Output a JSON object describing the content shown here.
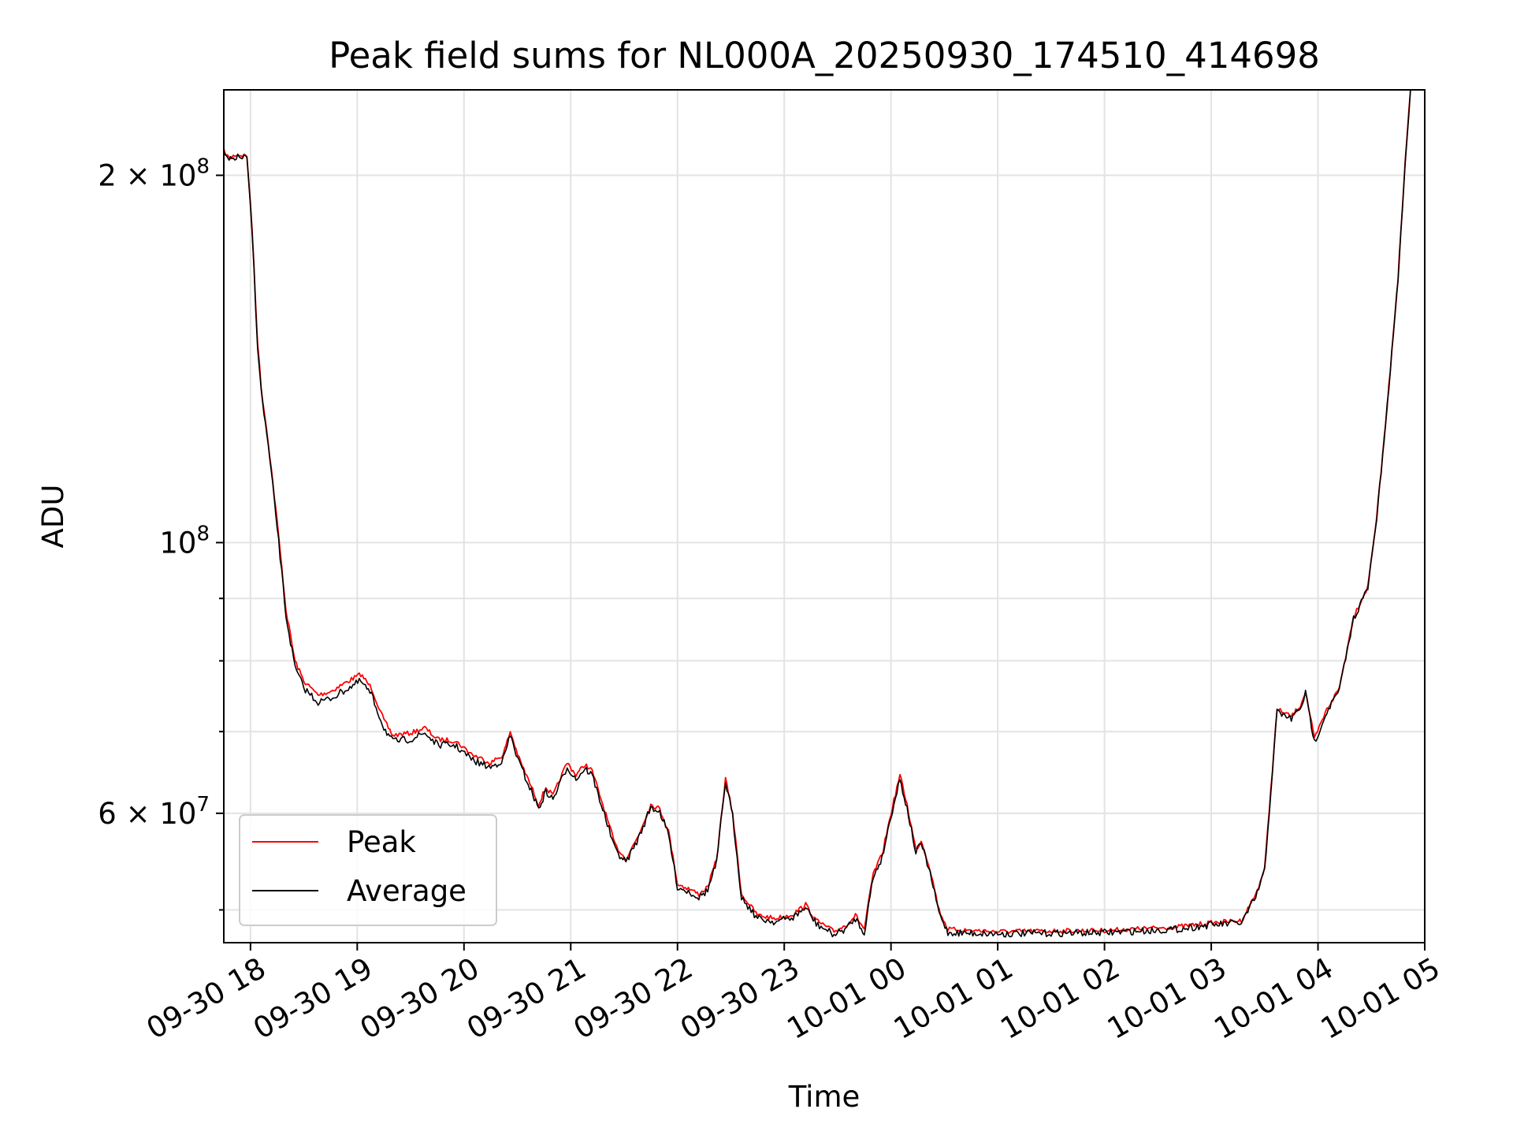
{
  "chart_data": {
    "type": "line",
    "title": "Peak field sums for NL000A_20250930_174510_414698",
    "xlabel": "Time",
    "ylabel": "ADU",
    "y_scale": "log",
    "ylim": [
      47000000,
      235000000
    ],
    "xlim": [
      "2025-09-30 17:45",
      "2025-10-01 05:00"
    ],
    "grid": true,
    "legend_position": "lower-left",
    "x_ticks": [
      {
        "label": "09-30 18",
        "value": "2025-09-30 18:00"
      },
      {
        "label": "09-30 19",
        "value": "2025-09-30 19:00"
      },
      {
        "label": "09-30 20",
        "value": "2025-09-30 20:00"
      },
      {
        "label": "09-30 21",
        "value": "2025-09-30 21:00"
      },
      {
        "label": "09-30 22",
        "value": "2025-09-30 22:00"
      },
      {
        "label": "09-30 23",
        "value": "2025-09-30 23:00"
      },
      {
        "label": "10-01 00",
        "value": "2025-10-01 00:00"
      },
      {
        "label": "10-01 01",
        "value": "2025-10-01 01:00"
      },
      {
        "label": "10-01 02",
        "value": "2025-10-01 02:00"
      },
      {
        "label": "10-01 03",
        "value": "2025-10-01 03:00"
      },
      {
        "label": "10-01 04",
        "value": "2025-10-01 04:00"
      },
      {
        "label": "10-01 05",
        "value": "2025-10-01 05:00"
      }
    ],
    "y_major_ticks": [
      {
        "value": 60000000,
        "mantissa": "6",
        "exponent": "7"
      },
      {
        "value": 100000000,
        "mantissa": "",
        "exponent": "8"
      },
      {
        "value": 200000000,
        "mantissa": "2",
        "exponent": "8"
      }
    ],
    "y_minor_ticks": [
      50000000,
      70000000,
      80000000,
      90000000
    ],
    "series": [
      {
        "name": "Peak",
        "color": "#ff0000",
        "points": [
          [
            "2025-09-30 17:45",
            209500000
          ],
          [
            "2025-09-30 17:48",
            206500000
          ],
          [
            "2025-09-30 17:52",
            208000000
          ],
          [
            "2025-09-30 17:58",
            207500000
          ],
          [
            "2025-09-30 18:01",
            180000000
          ],
          [
            "2025-09-30 18:04",
            146000000
          ],
          [
            "2025-09-30 18:06",
            134000000
          ],
          [
            "2025-09-30 18:10",
            121000000
          ],
          [
            "2025-09-30 18:15",
            104000000
          ],
          [
            "2025-09-30 18:20",
            88000000
          ],
          [
            "2025-09-30 18:25",
            80000000
          ],
          [
            "2025-09-30 18:30",
            77000000
          ],
          [
            "2025-09-30 18:38",
            75000000
          ],
          [
            "2025-09-30 18:45",
            75500000
          ],
          [
            "2025-09-30 18:55",
            77000000
          ],
          [
            "2025-09-30 19:02",
            78000000
          ],
          [
            "2025-09-30 19:08",
            76000000
          ],
          [
            "2025-09-30 19:15",
            71500000
          ],
          [
            "2025-09-30 19:20",
            69500000
          ],
          [
            "2025-09-30 19:30",
            69800000
          ],
          [
            "2025-09-30 19:38",
            70500000
          ],
          [
            "2025-09-30 19:45",
            69000000
          ],
          [
            "2025-09-30 19:55",
            68800000
          ],
          [
            "2025-09-30 20:05",
            67000000
          ],
          [
            "2025-09-30 20:15",
            66000000
          ],
          [
            "2025-09-30 20:22",
            67000000
          ],
          [
            "2025-09-30 20:26",
            70000000
          ],
          [
            "2025-09-30 20:31",
            66500000
          ],
          [
            "2025-09-30 20:37",
            63500000
          ],
          [
            "2025-09-30 20:42",
            61000000
          ],
          [
            "2025-09-30 20:46",
            63000000
          ],
          [
            "2025-09-30 20:50",
            62000000
          ],
          [
            "2025-09-30 20:55",
            64500000
          ],
          [
            "2025-09-30 20:58",
            66000000
          ],
          [
            "2025-09-30 21:03",
            64500000
          ],
          [
            "2025-09-30 21:08",
            65800000
          ],
          [
            "2025-09-30 21:12",
            65000000
          ],
          [
            "2025-09-30 21:18",
            61000000
          ],
          [
            "2025-09-30 21:25",
            56500000
          ],
          [
            "2025-09-30 21:31",
            55000000
          ],
          [
            "2025-09-30 21:38",
            57500000
          ],
          [
            "2025-09-30 21:45",
            61000000
          ],
          [
            "2025-09-30 21:50",
            60500000
          ],
          [
            "2025-09-30 21:55",
            58000000
          ],
          [
            "2025-09-30 22:00",
            52500000
          ],
          [
            "2025-09-30 22:07",
            52000000
          ],
          [
            "2025-09-30 22:12",
            51500000
          ],
          [
            "2025-09-30 22:17",
            52200000
          ],
          [
            "2025-09-30 22:22",
            55000000
          ],
          [
            "2025-09-30 22:27",
            64000000
          ],
          [
            "2025-09-30 22:31",
            60000000
          ],
          [
            "2025-09-30 22:36",
            51500000
          ],
          [
            "2025-09-30 22:45",
            49500000
          ],
          [
            "2025-09-30 22:55",
            49200000
          ],
          [
            "2025-09-30 23:05",
            49600000
          ],
          [
            "2025-09-30 23:12",
            50500000
          ],
          [
            "2025-09-30 23:18",
            49000000
          ],
          [
            "2025-09-30 23:28",
            48000000
          ],
          [
            "2025-09-30 23:35",
            48600000
          ],
          [
            "2025-09-30 23:40",
            49500000
          ],
          [
            "2025-09-30 23:45",
            48200000
          ],
          [
            "2025-09-30 23:50",
            53500000
          ],
          [
            "2025-09-30 23:55",
            55500000
          ],
          [
            "2025-10-01 00:00",
            60000000
          ],
          [
            "2025-10-01 00:05",
            64500000
          ],
          [
            "2025-10-01 00:09",
            61000000
          ],
          [
            "2025-10-01 00:14",
            56000000
          ],
          [
            "2025-10-01 00:17",
            57000000
          ],
          [
            "2025-10-01 00:22",
            54000000
          ],
          [
            "2025-10-01 00:27",
            50000000
          ],
          [
            "2025-10-01 00:32",
            48200000
          ],
          [
            "2025-10-01 01:00",
            48000000
          ],
          [
            "2025-10-01 02:00",
            48100000
          ],
          [
            "2025-10-01 02:40",
            48400000
          ],
          [
            "2025-10-01 03:00",
            48800000
          ],
          [
            "2025-10-01 03:17",
            49000000
          ],
          [
            "2025-10-01 03:25",
            51500000
          ],
          [
            "2025-10-01 03:30",
            54000000
          ],
          [
            "2025-10-01 03:37",
            73000000
          ],
          [
            "2025-10-01 03:45",
            72000000
          ],
          [
            "2025-10-01 03:50",
            73500000
          ],
          [
            "2025-10-01 03:53",
            75500000
          ],
          [
            "2025-10-01 03:58",
            69000000
          ],
          [
            "2025-10-01 04:05",
            73000000
          ],
          [
            "2025-10-01 04:12",
            76000000
          ],
          [
            "2025-10-01 04:20",
            87000000
          ],
          [
            "2025-10-01 04:28",
            92000000
          ],
          [
            "2025-10-01 04:33",
            105000000
          ],
          [
            "2025-10-01 04:38",
            125000000
          ],
          [
            "2025-10-01 04:45",
            165000000
          ],
          [
            "2025-10-01 04:49",
            205000000
          ],
          [
            "2025-10-01 04:52",
            235000000
          ]
        ]
      },
      {
        "name": "Average",
        "color": "#000000",
        "points": [
          [
            "2025-09-30 17:45",
            208500000
          ],
          [
            "2025-09-30 17:48",
            205500000
          ],
          [
            "2025-09-30 17:52",
            207000000
          ],
          [
            "2025-09-30 17:58",
            206500000
          ],
          [
            "2025-09-30 18:01",
            179000000
          ],
          [
            "2025-09-30 18:04",
            145000000
          ],
          [
            "2025-09-30 18:06",
            133000000
          ],
          [
            "2025-09-30 18:10",
            120000000
          ],
          [
            "2025-09-30 18:15",
            103000000
          ],
          [
            "2025-09-30 18:20",
            87000000
          ],
          [
            "2025-09-30 18:25",
            79000000
          ],
          [
            "2025-09-30 18:30",
            76000000
          ],
          [
            "2025-09-30 18:38",
            74000000
          ],
          [
            "2025-09-30 18:45",
            74500000
          ],
          [
            "2025-09-30 18:55",
            76000000
          ],
          [
            "2025-09-30 19:02",
            77000000
          ],
          [
            "2025-09-30 19:08",
            75000000
          ],
          [
            "2025-09-30 19:15",
            70500000
          ],
          [
            "2025-09-30 19:20",
            68700000
          ],
          [
            "2025-09-30 19:30",
            69000000
          ],
          [
            "2025-09-30 19:38",
            69800000
          ],
          [
            "2025-09-30 19:45",
            68300000
          ],
          [
            "2025-09-30 19:55",
            68200000
          ],
          [
            "2025-09-30 20:05",
            66300000
          ],
          [
            "2025-09-30 20:15",
            65400000
          ],
          [
            "2025-09-30 20:22",
            66400000
          ],
          [
            "2025-09-30 20:26",
            69500000
          ],
          [
            "2025-09-30 20:31",
            66000000
          ],
          [
            "2025-09-30 20:37",
            63000000
          ],
          [
            "2025-09-30 20:42",
            60500000
          ],
          [
            "2025-09-30 20:46",
            62500000
          ],
          [
            "2025-09-30 20:50",
            61600000
          ],
          [
            "2025-09-30 20:55",
            64000000
          ],
          [
            "2025-09-30 20:58",
            65500000
          ],
          [
            "2025-09-30 21:03",
            64000000
          ],
          [
            "2025-09-30 21:08",
            65300000
          ],
          [
            "2025-09-30 21:12",
            64500000
          ],
          [
            "2025-09-30 21:18",
            60500000
          ],
          [
            "2025-09-30 21:25",
            56000000
          ],
          [
            "2025-09-30 21:31",
            54700000
          ],
          [
            "2025-09-30 21:38",
            57200000
          ],
          [
            "2025-09-30 21:45",
            60700000
          ],
          [
            "2025-09-30 21:50",
            60200000
          ],
          [
            "2025-09-30 21:55",
            57600000
          ],
          [
            "2025-09-30 22:00",
            52200000
          ],
          [
            "2025-09-30 22:07",
            51700000
          ],
          [
            "2025-09-30 22:12",
            51200000
          ],
          [
            "2025-09-30 22:17",
            51900000
          ],
          [
            "2025-09-30 22:22",
            54700000
          ],
          [
            "2025-09-30 22:27",
            63700000
          ],
          [
            "2025-09-30 22:31",
            59700000
          ],
          [
            "2025-09-30 22:36",
            51200000
          ],
          [
            "2025-09-30 22:45",
            49200000
          ],
          [
            "2025-09-30 22:55",
            48900000
          ],
          [
            "2025-09-30 23:05",
            49300000
          ],
          [
            "2025-09-30 23:12",
            50200000
          ],
          [
            "2025-09-30 23:18",
            48700000
          ],
          [
            "2025-09-30 23:28",
            47700000
          ],
          [
            "2025-09-30 23:35",
            48300000
          ],
          [
            "2025-09-30 23:40",
            49200000
          ],
          [
            "2025-09-30 23:45",
            47900000
          ],
          [
            "2025-09-30 23:50",
            53200000
          ],
          [
            "2025-09-30 23:55",
            55200000
          ],
          [
            "2025-10-01 00:00",
            59700000
          ],
          [
            "2025-10-01 00:05",
            64000000
          ],
          [
            "2025-10-01 00:09",
            60600000
          ],
          [
            "2025-10-01 00:14",
            55700000
          ],
          [
            "2025-10-01 00:17",
            56700000
          ],
          [
            "2025-10-01 00:22",
            53600000
          ],
          [
            "2025-10-01 00:27",
            49700000
          ],
          [
            "2025-10-01 00:32",
            47900000
          ],
          [
            "2025-10-01 01:00",
            47800000
          ],
          [
            "2025-10-01 02:00",
            47900000
          ],
          [
            "2025-10-01 02:40",
            48200000
          ],
          [
            "2025-10-01 03:00",
            48600000
          ],
          [
            "2025-10-01 03:17",
            48800000
          ],
          [
            "2025-10-01 03:25",
            51200000
          ],
          [
            "2025-10-01 03:30",
            53800000
          ],
          [
            "2025-10-01 03:37",
            72700000
          ],
          [
            "2025-10-01 03:45",
            71700000
          ],
          [
            "2025-10-01 03:50",
            73200000
          ],
          [
            "2025-10-01 03:53",
            75200000
          ],
          [
            "2025-10-01 03:58",
            68600000
          ],
          [
            "2025-10-01 04:05",
            72700000
          ],
          [
            "2025-10-01 04:12",
            75700000
          ],
          [
            "2025-10-01 04:20",
            86700000
          ],
          [
            "2025-10-01 04:28",
            91700000
          ],
          [
            "2025-10-01 04:33",
            104700000
          ],
          [
            "2025-10-01 04:38",
            124700000
          ],
          [
            "2025-10-01 04:45",
            164700000
          ],
          [
            "2025-10-01 04:49",
            204700000
          ],
          [
            "2025-10-01 04:52",
            235000000
          ]
        ]
      }
    ]
  }
}
